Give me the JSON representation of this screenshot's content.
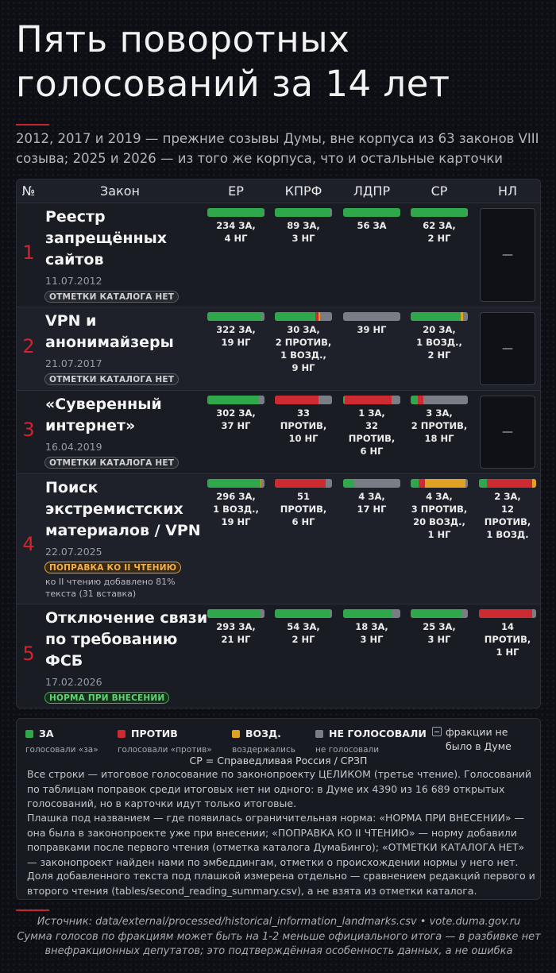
{
  "title_line1": "Пять поворотных",
  "title_line2": "голосований за 14 лет",
  "subtitle": "2012, 2017 и 2019 — прежние созывы Думы, вне корпуса из 63 законов VIII созыва; 2025 и 2026 — из того же корпуса, что и остальные карточки",
  "colors": {
    "za": "#2fa84b",
    "protiv": "#cc2b31",
    "vozd": "#e0a222",
    "ng": "#7a7d85",
    "accent": "#d4232e"
  },
  "header": {
    "num": "№",
    "law": "Закон",
    "er": "ЕР",
    "kprf": "КПРФ",
    "ldpr": "ЛДПР",
    "sr": "СР",
    "nl": "НЛ"
  },
  "rows": [
    {
      "num": "1",
      "law": [
        "Реестр",
        "запрещённых",
        "сайтов"
      ],
      "date": "11.07.2012",
      "badge": "ОТМЕТКИ КАТАЛОГА НЕТ",
      "note": "",
      "votes": {
        "er": {
          "za": 234,
          "protiv": 0,
          "vozd": 0,
          "ng": 4,
          "text": "234 ЗА,\n4 НГ"
        },
        "kprf": {
          "za": 89,
          "protiv": 0,
          "vozd": 0,
          "ng": 3,
          "text": "89 ЗА,\n3 НГ"
        },
        "ldpr": {
          "za": 56,
          "protiv": 0,
          "vozd": 0,
          "ng": 0,
          "text": "56 ЗА"
        },
        "sr": {
          "za": 62,
          "protiv": 0,
          "vozd": 0,
          "ng": 2,
          "text": "62 ЗА,\n2 НГ"
        },
        "nl": null
      },
      "nl_text": "—"
    },
    {
      "num": "2",
      "law": [
        "VPN и",
        "анонимайзеры"
      ],
      "date": "21.07.2017",
      "badge": "ОТМЕТКИ КАТАЛОГА НЕТ",
      "note": "",
      "votes": {
        "er": {
          "za": 322,
          "protiv": 0,
          "vozd": 0,
          "ng": 19,
          "text": "322 ЗА,\n19 НГ"
        },
        "kprf": {
          "za": 30,
          "protiv": 2,
          "vozd": 1,
          "ng": 9,
          "text": "30 ЗА,\n2 ПРОТИВ,\n1 ВОЗД.,\n9 НГ"
        },
        "ldpr": {
          "za": 0,
          "protiv": 0,
          "vozd": 0,
          "ng": 39,
          "text": "39 НГ"
        },
        "sr": {
          "za": 20,
          "protiv": 0,
          "vozd": 1,
          "ng": 2,
          "text": "20 ЗА,\n1 ВОЗД.,\n2 НГ"
        },
        "nl": null
      },
      "nl_text": "—"
    },
    {
      "num": "3",
      "law": [
        "«Суверенный",
        "интернет»"
      ],
      "date": "16.04.2019",
      "badge": "ОТМЕТКИ КАТАЛОГА НЕТ",
      "note": "",
      "votes": {
        "er": {
          "za": 302,
          "protiv": 0,
          "vozd": 0,
          "ng": 37,
          "text": "302 ЗА,\n37 НГ"
        },
        "kprf": {
          "za": 0,
          "protiv": 33,
          "vozd": 0,
          "ng": 10,
          "text": "33 ПРОТИВ,\n10 НГ"
        },
        "ldpr": {
          "za": 1,
          "protiv": 32,
          "vozd": 0,
          "ng": 6,
          "text": "1 ЗА,\n32 ПРОТИВ,\n6 НГ"
        },
        "sr": {
          "za": 3,
          "protiv": 2,
          "vozd": 0,
          "ng": 18,
          "text": "3 ЗА,\n2 ПРОТИВ,\n18 НГ"
        },
        "nl": null
      },
      "nl_text": "—"
    },
    {
      "num": "4",
      "law": [
        "Поиск",
        "экстремистских",
        "материалов / VPN"
      ],
      "date": "22.07.2025",
      "badge": "ПОПРАВКА КО II ЧТЕНИЮ",
      "note": "ко II чтению добавлено 81% текста (31 вставка)",
      "votes": {
        "er": {
          "za": 296,
          "protiv": 0,
          "vozd": 1,
          "ng": 19,
          "text": "296 ЗА,\n1 ВОЗД.,\n19 НГ"
        },
        "kprf": {
          "za": 0,
          "protiv": 51,
          "vozd": 0,
          "ng": 6,
          "text": "51 ПРОТИВ,\n6 НГ"
        },
        "ldpr": {
          "za": 4,
          "protiv": 0,
          "vozd": 0,
          "ng": 17,
          "text": "4 ЗА,\n17 НГ"
        },
        "sr": {
          "za": 4,
          "protiv": 3,
          "vozd": 20,
          "ng": 1,
          "text": "4 ЗА,\n3 ПРОТИВ,\n20 ВОЗД.,\n1 НГ"
        },
        "nl": {
          "za": 2,
          "protiv": 12,
          "vozd": 1,
          "ng": 0,
          "text": "2 ЗА,\n12 ПРОТИВ,\n1 ВОЗД."
        }
      },
      "nl_text": ""
    },
    {
      "num": "5",
      "law": [
        "Отключение связи",
        "по требованию",
        "ФСБ"
      ],
      "date": "17.02.2026",
      "badge": "НОРМА ПРИ ВНЕСЕНИИ",
      "note": "",
      "votes": {
        "er": {
          "za": 293,
          "protiv": 0,
          "vozd": 0,
          "ng": 21,
          "text": "293 ЗА,\n21 НГ"
        },
        "kprf": {
          "za": 54,
          "protiv": 0,
          "vozd": 0,
          "ng": 2,
          "text": "54 ЗА,\n2 НГ"
        },
        "ldpr": {
          "za": 18,
          "protiv": 0,
          "vozd": 0,
          "ng": 3,
          "text": "18 ЗА,\n3 НГ"
        },
        "sr": {
          "za": 25,
          "protiv": 0,
          "vozd": 0,
          "ng": 3,
          "text": "25 ЗА,\n3 НГ"
        },
        "nl": {
          "za": 0,
          "protiv": 14,
          "vozd": 0,
          "ng": 1,
          "text": "14 ПРОТИВ,\n1 НГ"
        }
      },
      "nl_text": ""
    }
  ],
  "legend": {
    "za": {
      "name": "ЗА",
      "desc": "голосовали «за»"
    },
    "protiv": {
      "name": "ПРОТИВ",
      "desc": "голосовали «против»"
    },
    "vozd": {
      "name": "ВОЗД.",
      "desc": "воздержались"
    },
    "ng": {
      "name": "НЕ ГОЛОСОВАЛИ",
      "desc": "не голосовали"
    },
    "no_faction": "фракции не было в Думе",
    "sr_expl": "СР = Справедливая Россия / СРЗП",
    "p1": "Все строки — итоговое голосование по законопроекту ЦЕЛИКОМ (третье чтение). Голосований по таблицам поправок среди итоговых нет ни одного: в Думе их 4390 из 16 689 открытых голосований, но в карточки идут только итоговые.",
    "p2": "Плашка под названием — где появилась ограничительная норма: «НОРМА ПРИ ВНЕСЕНИИ» — она была в законопроекте уже при внесении; «ПОПРАВКА КО II ЧТЕНИЮ» — норму добавили поправками после первого чтения (отметка каталога ДумаБинго); «ОТМЕТКИ КАТАЛОГА НЕТ» — законопроект найден нами по эмбеддингам, отметки о происхождении нормы у него нет.",
    "p3": "Доля добавленного текста под плашкой измерена отдельно — сравнением редакций первого и второго чтения (tables/second_reading_summary.csv), а не взята из отметки каталога."
  },
  "footer": {
    "source": "Источник: data/external/processed/historical_information_landmarks.csv • vote.duma.gov.ru",
    "note": "Сумма голосов по фракциям может быть на 1-2 меньше официального итога — в разбивке нет внефракционных депутатов; это подтверждённая особенность данных, а не ошибка"
  }
}
